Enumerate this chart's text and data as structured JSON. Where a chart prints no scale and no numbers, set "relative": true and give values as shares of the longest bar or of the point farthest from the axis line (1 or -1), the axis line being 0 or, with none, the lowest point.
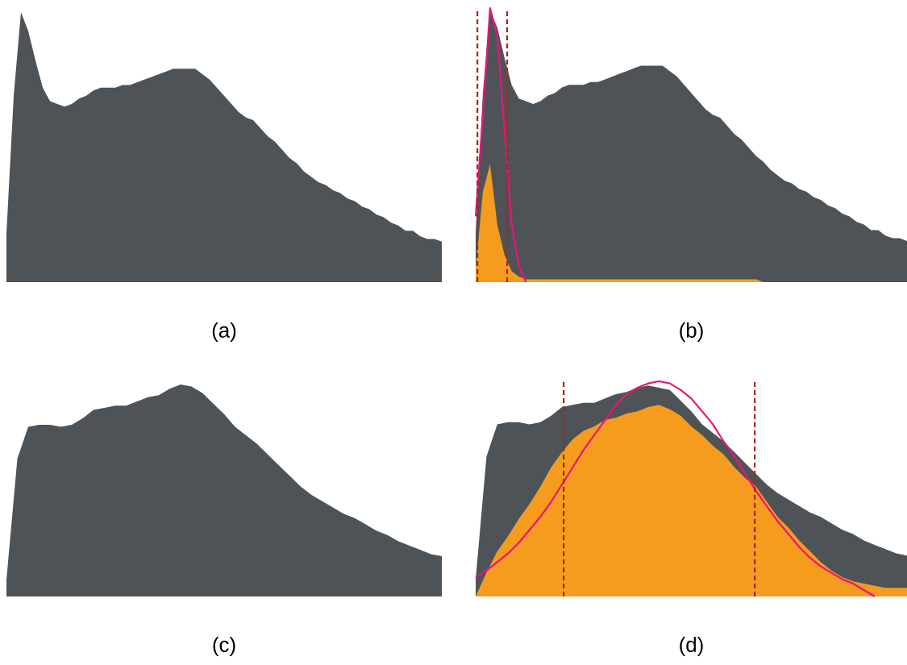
{
  "chart_data": [
    {
      "type": "area",
      "relative": true,
      "xlabel": "(a)",
      "categories": [
        null,
        null,
        null,
        null,
        null,
        null,
        null,
        null,
        null,
        null,
        null,
        null,
        null,
        null,
        null,
        null,
        null,
        null,
        null,
        null,
        null,
        null,
        null,
        null,
        null,
        null,
        null,
        null,
        null,
        null,
        null,
        null,
        null,
        null,
        null,
        null,
        null,
        null,
        null,
        null,
        null,
        null,
        null,
        null,
        null,
        null,
        null,
        null,
        null,
        null,
        null,
        null,
        null,
        null,
        null,
        null,
        null,
        null,
        null,
        null,
        null
      ],
      "series": [
        {
          "color": "#4d5357",
          "values": [
            0.18,
            0.69,
            1.0,
            0.93,
            0.82,
            0.72,
            0.67,
            0.66,
            0.65,
            0.66,
            0.68,
            0.69,
            0.71,
            0.72,
            0.72,
            0.72,
            0.73,
            0.73,
            0.74,
            0.75,
            0.76,
            0.77,
            0.78,
            0.79,
            0.79,
            0.79,
            0.79,
            0.77,
            0.75,
            0.72,
            0.69,
            0.66,
            0.63,
            0.61,
            0.6,
            0.57,
            0.54,
            0.52,
            0.49,
            0.46,
            0.44,
            0.41,
            0.39,
            0.37,
            0.36,
            0.34,
            0.33,
            0.31,
            0.3,
            0.28,
            0.27,
            0.25,
            0.24,
            0.22,
            0.21,
            0.19,
            0.19,
            0.17,
            0.16,
            0.16,
            0.15
          ]
        }
      ]
    },
    {
      "type": "area",
      "relative": true,
      "xlabel": "(b)",
      "categories": [
        null,
        null,
        null,
        null,
        null,
        null,
        null,
        null,
        null,
        null,
        null,
        null,
        null,
        null,
        null,
        null,
        null,
        null,
        null,
        null,
        null,
        null,
        null,
        null,
        null,
        null,
        null,
        null,
        null,
        null,
        null,
        null,
        null,
        null,
        null,
        null,
        null,
        null,
        null,
        null,
        null,
        null,
        null,
        null,
        null,
        null,
        null,
        null,
        null,
        null,
        null,
        null,
        null,
        null,
        null,
        null,
        null,
        null,
        null,
        null,
        null
      ],
      "series": [
        {
          "color": "#4d5357",
          "values": [
            0.18,
            0.69,
            0.99,
            0.93,
            0.82,
            0.72,
            0.67,
            0.66,
            0.65,
            0.66,
            0.68,
            0.69,
            0.71,
            0.72,
            0.72,
            0.72,
            0.73,
            0.73,
            0.74,
            0.75,
            0.76,
            0.77,
            0.78,
            0.79,
            0.79,
            0.79,
            0.79,
            0.77,
            0.75,
            0.72,
            0.69,
            0.66,
            0.63,
            0.61,
            0.6,
            0.57,
            0.54,
            0.52,
            0.49,
            0.46,
            0.44,
            0.41,
            0.39,
            0.37,
            0.36,
            0.34,
            0.33,
            0.31,
            0.3,
            0.28,
            0.27,
            0.25,
            0.24,
            0.22,
            0.21,
            0.19,
            0.19,
            0.17,
            0.16,
            0.16,
            0.15
          ]
        },
        {
          "color": "#f59c1f",
          "values": [
            0.05,
            0.33,
            0.43,
            0.21,
            0.1,
            0.04,
            0.02,
            0.01,
            0.01,
            0.01,
            0.01,
            0.01,
            0.01,
            0.01,
            0.01,
            0.01,
            0.01,
            0.01,
            0.01,
            0.01,
            0.01,
            0.01,
            0.01,
            0.01,
            0.01,
            0.01,
            0.01,
            0.01,
            0.01,
            0.01,
            0.01,
            0.01,
            0.01,
            0.01,
            0.01,
            0.01,
            0.01,
            0.01,
            0.01,
            0.01,
            0,
            0,
            0,
            0,
            0,
            0,
            0,
            0,
            0,
            0,
            0,
            0,
            0,
            0,
            0,
            0,
            0,
            0,
            0,
            0,
            0
          ]
        },
        {
          "type": "line",
          "color": "#e8157a",
          "values": [
            0.24,
            0.61,
            1.0,
            0.9,
            0.56,
            0.21,
            0.06,
            0.0,
            null,
            null,
            null,
            null,
            null,
            null,
            null,
            null,
            null,
            null,
            null,
            null,
            null,
            null,
            null,
            null,
            null,
            null,
            null,
            null,
            null,
            null,
            null,
            null,
            null,
            null,
            null,
            null,
            null,
            null,
            null,
            null,
            null,
            null,
            null,
            null,
            null,
            null,
            null,
            null,
            null,
            null,
            null,
            null,
            null,
            null,
            null,
            null,
            null,
            null,
            null,
            null,
            null
          ]
        }
      ]
    },
    {
      "type": "area",
      "relative": true,
      "xlabel": "(c)",
      "categories": [
        null,
        null,
        null,
        null,
        null,
        null,
        null,
        null,
        null,
        null,
        null,
        null,
        null,
        null,
        null,
        null,
        null,
        null,
        null,
        null,
        null,
        null,
        null,
        null,
        null,
        null,
        null,
        null,
        null,
        null,
        null,
        null,
        null,
        null,
        null,
        null,
        null,
        null,
        null,
        null,
        null
      ],
      "series": [
        {
          "color": "#4d5357",
          "values": [
            0.08,
            0.65,
            0.8,
            0.81,
            0.81,
            0.8,
            0.81,
            0.84,
            0.88,
            0.89,
            0.9,
            0.9,
            0.92,
            0.94,
            0.95,
            0.98,
            1.0,
            0.99,
            0.96,
            0.91,
            0.86,
            0.8,
            0.76,
            0.72,
            0.67,
            0.62,
            0.57,
            0.52,
            0.48,
            0.45,
            0.42,
            0.39,
            0.37,
            0.34,
            0.31,
            0.29,
            0.26,
            0.24,
            0.22,
            0.2,
            0.19
          ]
        }
      ]
    },
    {
      "type": "area",
      "relative": true,
      "xlabel": "(d)",
      "categories": [
        null,
        null,
        null,
        null,
        null,
        null,
        null,
        null,
        null,
        null,
        null,
        null,
        null,
        null,
        null,
        null,
        null,
        null,
        null,
        null,
        null,
        null,
        null,
        null,
        null,
        null,
        null,
        null,
        null,
        null,
        null,
        null,
        null,
        null,
        null,
        null,
        null,
        null,
        null,
        null,
        null
      ],
      "series": [
        {
          "color": "#4d5357",
          "values": [
            0.08,
            0.65,
            0.8,
            0.81,
            0.81,
            0.8,
            0.81,
            0.84,
            0.88,
            0.89,
            0.9,
            0.9,
            0.92,
            0.94,
            0.95,
            0.97,
            0.98,
            0.97,
            0.96,
            0.91,
            0.86,
            0.8,
            0.76,
            0.72,
            0.67,
            0.62,
            0.57,
            0.52,
            0.48,
            0.45,
            0.42,
            0.39,
            0.37,
            0.34,
            0.31,
            0.29,
            0.26,
            0.24,
            0.22,
            0.2,
            0.19
          ]
        },
        {
          "color": "#f59c1f",
          "values": [
            0.0,
            0.11,
            0.21,
            0.28,
            0.36,
            0.43,
            0.51,
            0.6,
            0.67,
            0.73,
            0.77,
            0.79,
            0.82,
            0.83,
            0.85,
            0.86,
            0.88,
            0.89,
            0.87,
            0.84,
            0.79,
            0.75,
            0.7,
            0.66,
            0.6,
            0.55,
            0.51,
            0.44,
            0.37,
            0.32,
            0.26,
            0.21,
            0.16,
            0.12,
            0.09,
            0.07,
            0.06,
            0.05,
            0.04,
            0.04,
            0.04
          ]
        },
        {
          "type": "line",
          "color": "#e8157a",
          "values": [
            0.09,
            0.12,
            0.16,
            0.2,
            0.25,
            0.31,
            0.37,
            0.44,
            0.52,
            0.6,
            0.68,
            0.75,
            0.82,
            0.89,
            0.94,
            0.97,
            0.99,
            1.0,
            0.99,
            0.96,
            0.92,
            0.86,
            0.8,
            0.72,
            0.65,
            0.57,
            0.49,
            0.42,
            0.35,
            0.29,
            0.23,
            0.18,
            0.14,
            0.11,
            0.08,
            0.06,
            0.03,
            0.0,
            null,
            null,
            null
          ]
        }
      ]
    }
  ]
}
